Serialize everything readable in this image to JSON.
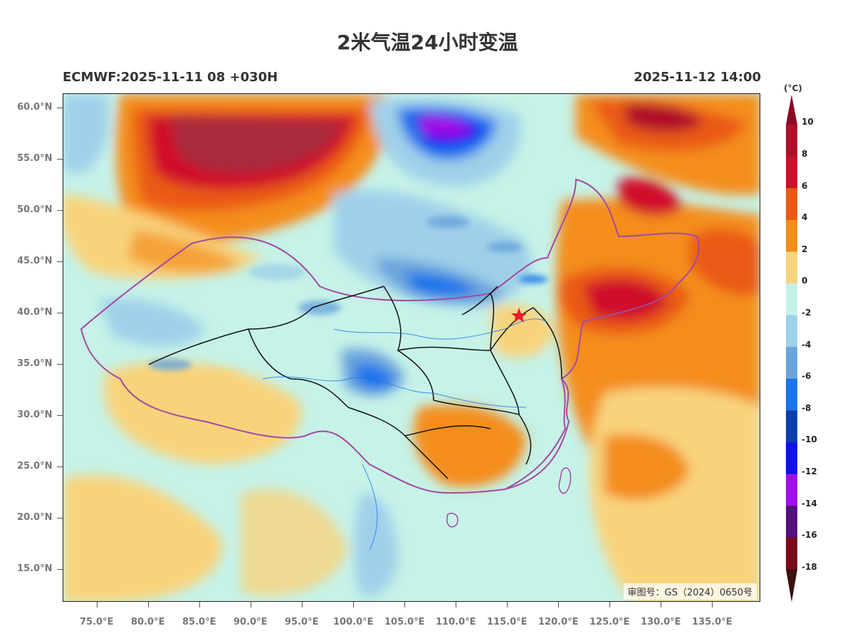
{
  "title": "2米气温24小时变温",
  "subtitle_left": "ECMWF:2025-11-11 08 +030H",
  "subtitle_right": "2025-11-12 14:00",
  "watermark": "审图号：GS（2024）0650号",
  "y_axis_labels": [
    "60.0°N",
    "55.0°N",
    "50.0°N",
    "45.0°N",
    "40.0°N",
    "35.0°N",
    "30.0°N",
    "25.0°N",
    "20.0°N",
    "15.0°N"
  ],
  "x_axis_labels": [
    "75.0°E",
    "80.0°E",
    "85.0°E",
    "90.0°E",
    "95.0°E",
    "100.0°E",
    "105.0°E",
    "110.0°E",
    "115.0°E",
    "120.0°E",
    "125.0°E",
    "130.0°E",
    "135.0°E"
  ],
  "colorbar": {
    "unit": "(°C)",
    "labels": [
      "10",
      "8",
      "6",
      "4",
      "2",
      "0",
      "-2",
      "-4",
      "-6",
      "-8",
      "-10",
      "-12",
      "-14",
      "-16",
      "-18"
    ],
    "colors": [
      "#b0102a",
      "#d00e2c",
      "#ea5a12",
      "#f48d1a",
      "#f8d37c",
      "#c6f2e8",
      "#9fd0e9",
      "#6aa4dc",
      "#1a74ec",
      "#0b3fb0",
      "#1010f0",
      "#a110e6",
      "#54107e",
      "#7a0a1a"
    ],
    "top_tip_color": "#8c0a24",
    "bottom_tip_color": "#3a1010"
  }
}
